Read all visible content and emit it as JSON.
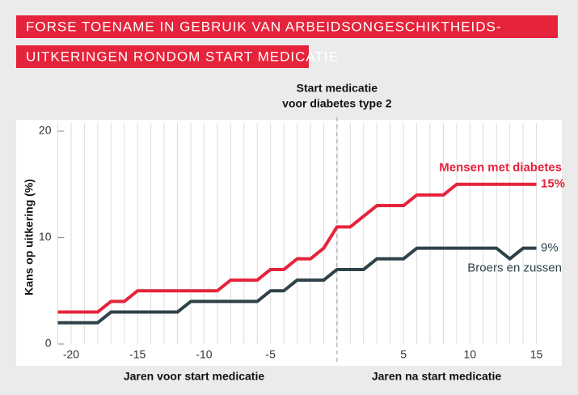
{
  "chart_data": {
    "type": "line",
    "title": [
      "FORSE TOENAME IN GEBRUIK VAN ARBEIDSONGESCHIKTHEIDS-",
      "UITKERINGEN RONDOM START MEDICATIE"
    ],
    "annotation": [
      "Start medicatie",
      "voor diabetes type 2"
    ],
    "vline": 0,
    "ylabel": "Kans op uitkering (%)",
    "x_label_left": "Jaren voor start medicatie",
    "x_label_right": "Jaren na start medicatie",
    "x": [
      -21,
      -20,
      -19,
      -18,
      -17,
      -16,
      -15,
      -14,
      -13,
      -12,
      -11,
      -10,
      -9,
      -8,
      -7,
      -6,
      -5,
      -4,
      -3,
      -2,
      -1,
      0,
      1,
      2,
      3,
      4,
      5,
      6,
      7,
      8,
      9,
      10,
      11,
      12,
      13,
      14,
      15
    ],
    "series": [
      {
        "name": "Mensen met diabetes",
        "color": "#e5233a",
        "end_label": "15%",
        "values": [
          3,
          3,
          3,
          3,
          4,
          4,
          5,
          5,
          5,
          5,
          5,
          5,
          5,
          6,
          6,
          6,
          7,
          7,
          8,
          8,
          9,
          11,
          11,
          12,
          13,
          13,
          13,
          14,
          14,
          14,
          15,
          15,
          15,
          15,
          15,
          15,
          15
        ]
      },
      {
        "name": "Broers en zussen",
        "color": "#2e4249",
        "end_label": "9%",
        "values": [
          2,
          2,
          2,
          2,
          3,
          3,
          3,
          3,
          3,
          3,
          4,
          4,
          4,
          4,
          4,
          4,
          5,
          5,
          6,
          6,
          6,
          7,
          7,
          7,
          8,
          8,
          8,
          9,
          9,
          9,
          9,
          9,
          9,
          9,
          8,
          9,
          9
        ]
      }
    ],
    "xlim": [
      -21,
      16
    ],
    "xticks": [
      -20,
      -15,
      -10,
      -5,
      5,
      10,
      15
    ],
    "ylim": [
      0,
      20
    ],
    "yticks": [
      0,
      10,
      20
    ]
  }
}
